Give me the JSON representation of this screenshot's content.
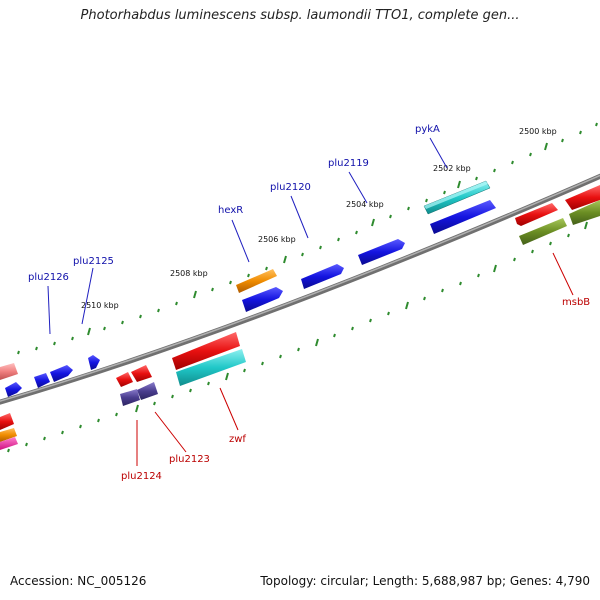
{
  "title": "Photorhabdus luminescens subsp. laumondii TTO1, complete gen...",
  "footer": {
    "accession": "Accession: NC_005126",
    "topology": "Topology: circular; Length: 5,688,987 bp; Genes: 4,790"
  },
  "kbp_labels": [
    "2500 kbp",
    "2502 kbp",
    "2504 kbp",
    "2506 kbp",
    "2508 kbp",
    "2510 kbp"
  ],
  "top_gene_labels": [
    "pykA",
    "plu2119",
    "plu2120",
    "hexR",
    "plu2125",
    "plu2126"
  ],
  "bottom_gene_labels": [
    "msbB",
    "zwf",
    "plu2123",
    "plu2124"
  ],
  "colors": {
    "backbone": "#808080",
    "tick": "#2e8b2e",
    "blue_gene": "#1a1ae6",
    "red_gene": "#e01010",
    "cyan_gene": "#20c8c8",
    "orange_gene": "#f08c00",
    "olive_gene": "#6b8e23",
    "purple_gene": "#4a3d8f",
    "pink_gene": "#f08080"
  }
}
